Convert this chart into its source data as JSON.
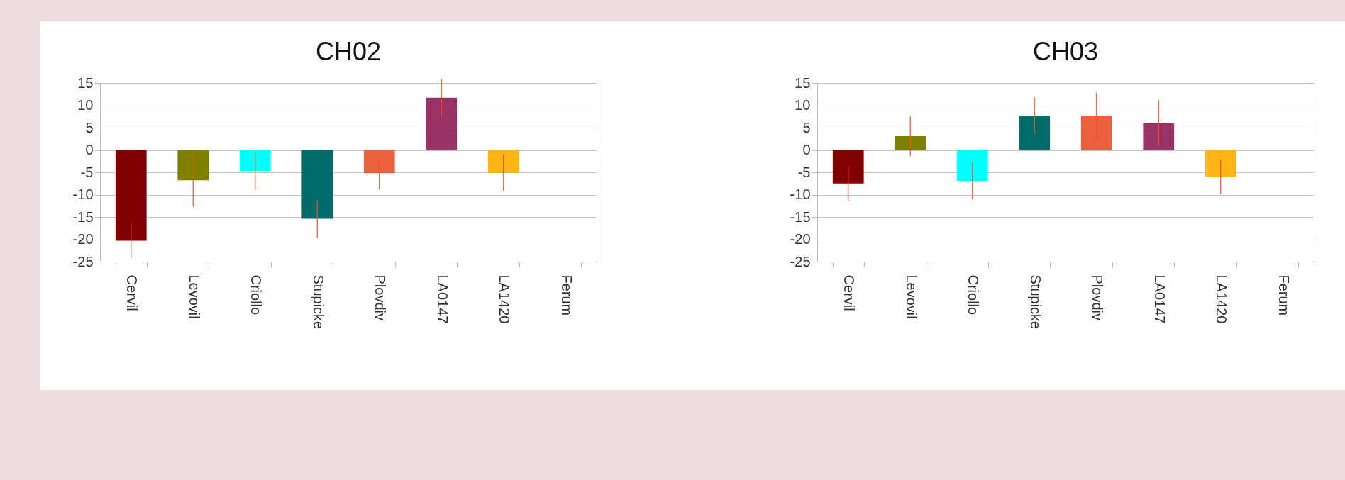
{
  "chart_data": [
    {
      "type": "bar",
      "title": "CH02",
      "categories": [
        "Cervil",
        "Levovil",
        "Criollo",
        "Stupicke",
        "Plovdiv",
        "LA0147",
        "LA1420",
        "Ferum"
      ],
      "values": [
        -20.3,
        -6.8,
        -4.7,
        -15.4,
        -5.2,
        11.7,
        -5.1,
        0
      ],
      "errors": [
        3.8,
        5.9,
        4.3,
        4.3,
        3.7,
        4.2,
        4.1,
        null
      ],
      "colors": [
        "#800000",
        "#808000",
        "#00ffff",
        "#006b6b",
        "#eb613d",
        "#993366",
        "#ffb515",
        "#ffb515"
      ],
      "ylim": [
        -25,
        15
      ],
      "yticks": [
        -25,
        -20,
        -15,
        -10,
        -5,
        0,
        5,
        10,
        15
      ],
      "grid": "y"
    },
    {
      "type": "bar",
      "title": "CH03",
      "categories": [
        "Cervil",
        "Levovil",
        "Criollo",
        "Stupicke",
        "Plovdiv",
        "LA0147",
        "LA1420",
        "Ferum"
      ],
      "values": [
        -7.5,
        3.1,
        -6.9,
        7.7,
        7.7,
        6.0,
        -6.0,
        0
      ],
      "errors": [
        4.0,
        4.4,
        4.1,
        4.1,
        5.2,
        5.1,
        3.9,
        null
      ],
      "colors": [
        "#800000",
        "#808000",
        "#00ffff",
        "#006b6b",
        "#eb613d",
        "#993366",
        "#ffb515",
        "#ffb515"
      ],
      "ylim": [
        -25,
        15
      ],
      "yticks": [
        -25,
        -20,
        -15,
        -10,
        -5,
        0,
        5,
        10,
        15
      ],
      "grid": "y"
    }
  ]
}
